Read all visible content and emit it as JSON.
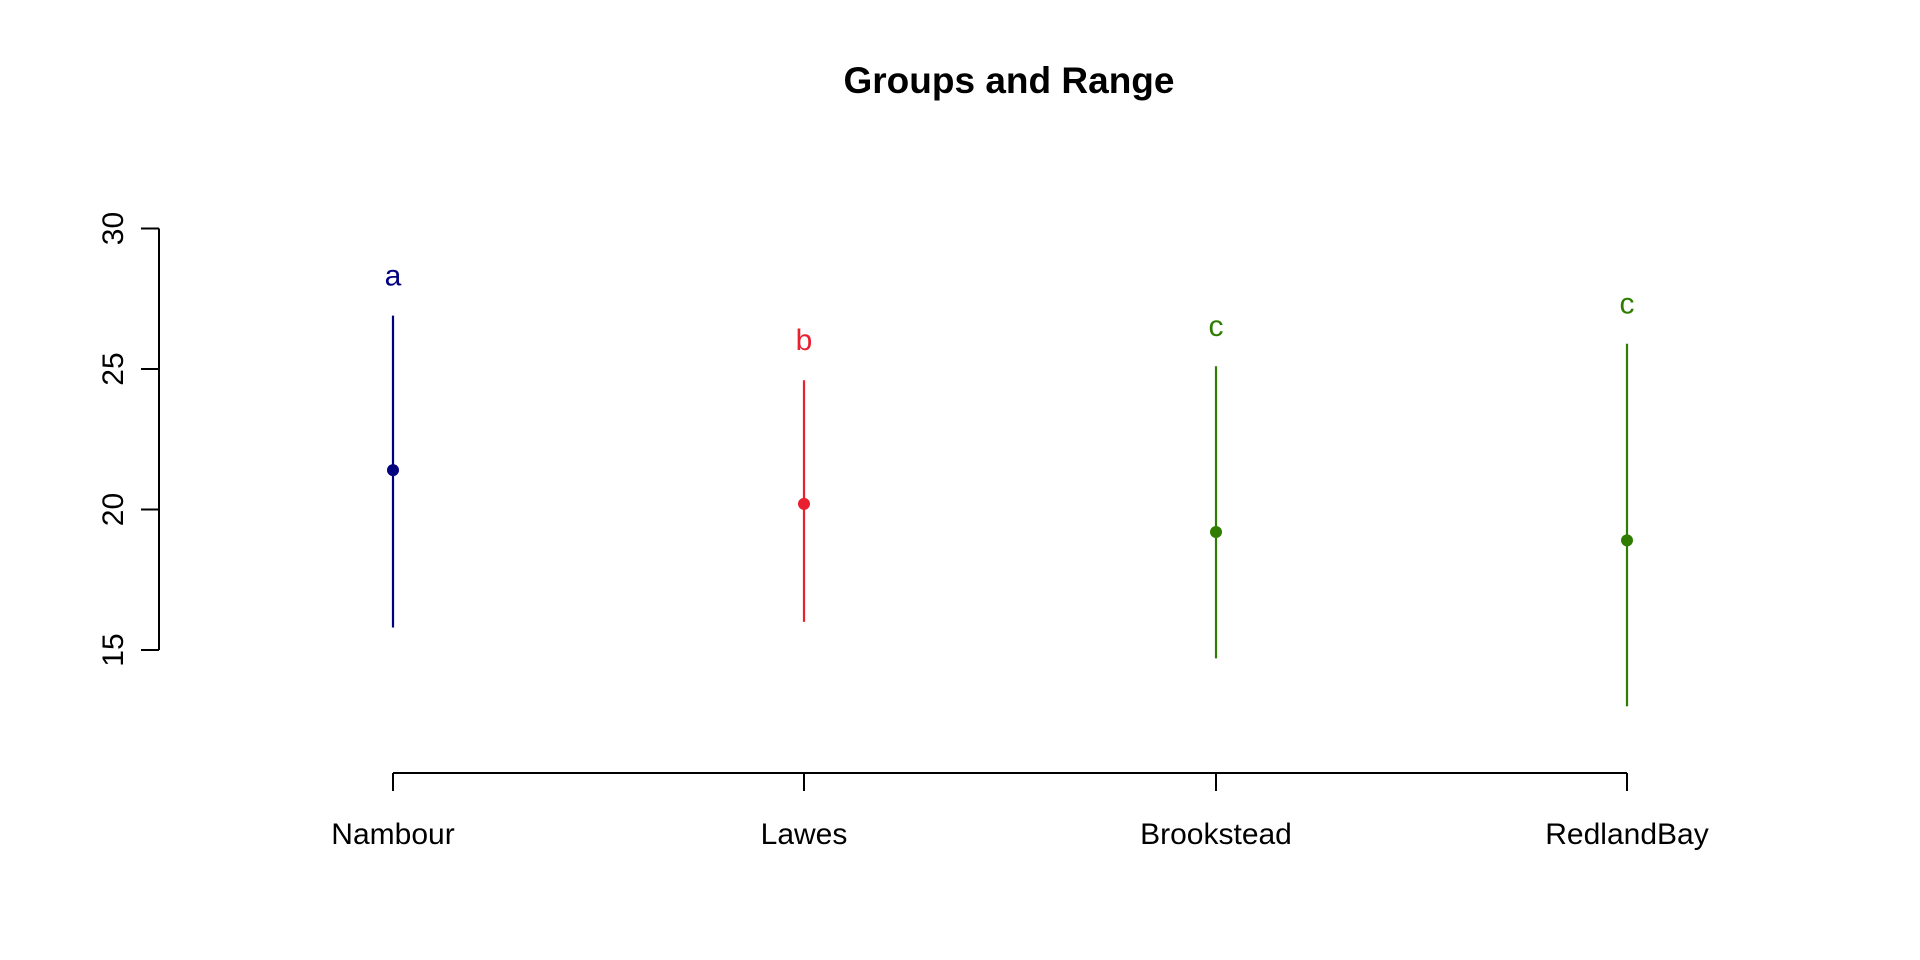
{
  "chart_data": {
    "type": "scatter",
    "title": "Groups and Range",
    "xlabel": "",
    "ylabel": "",
    "ylim": [
      12,
      32
    ],
    "y_ticks": [
      15,
      20,
      25,
      30
    ],
    "categories": [
      "Nambour",
      "Lawes",
      "Brookstead",
      "RedlandBay"
    ],
    "points": [
      {
        "category": "Nambour",
        "mean": 21.4,
        "min": 15.8,
        "max": 26.9,
        "group": "a",
        "color": "#000080"
      },
      {
        "category": "Lawes",
        "mean": 20.2,
        "min": 16.0,
        "max": 24.6,
        "group": "b",
        "color": "#e8202f"
      },
      {
        "category": "Brookstead",
        "mean": 19.2,
        "min": 14.7,
        "max": 25.1,
        "group": "c",
        "color": "#2e7d00"
      },
      {
        "category": "RedlandBay",
        "mean": 18.9,
        "min": 13.0,
        "max": 25.9,
        "group": "c",
        "color": "#2e7d00"
      }
    ],
    "grid": false,
    "legend": "none"
  }
}
